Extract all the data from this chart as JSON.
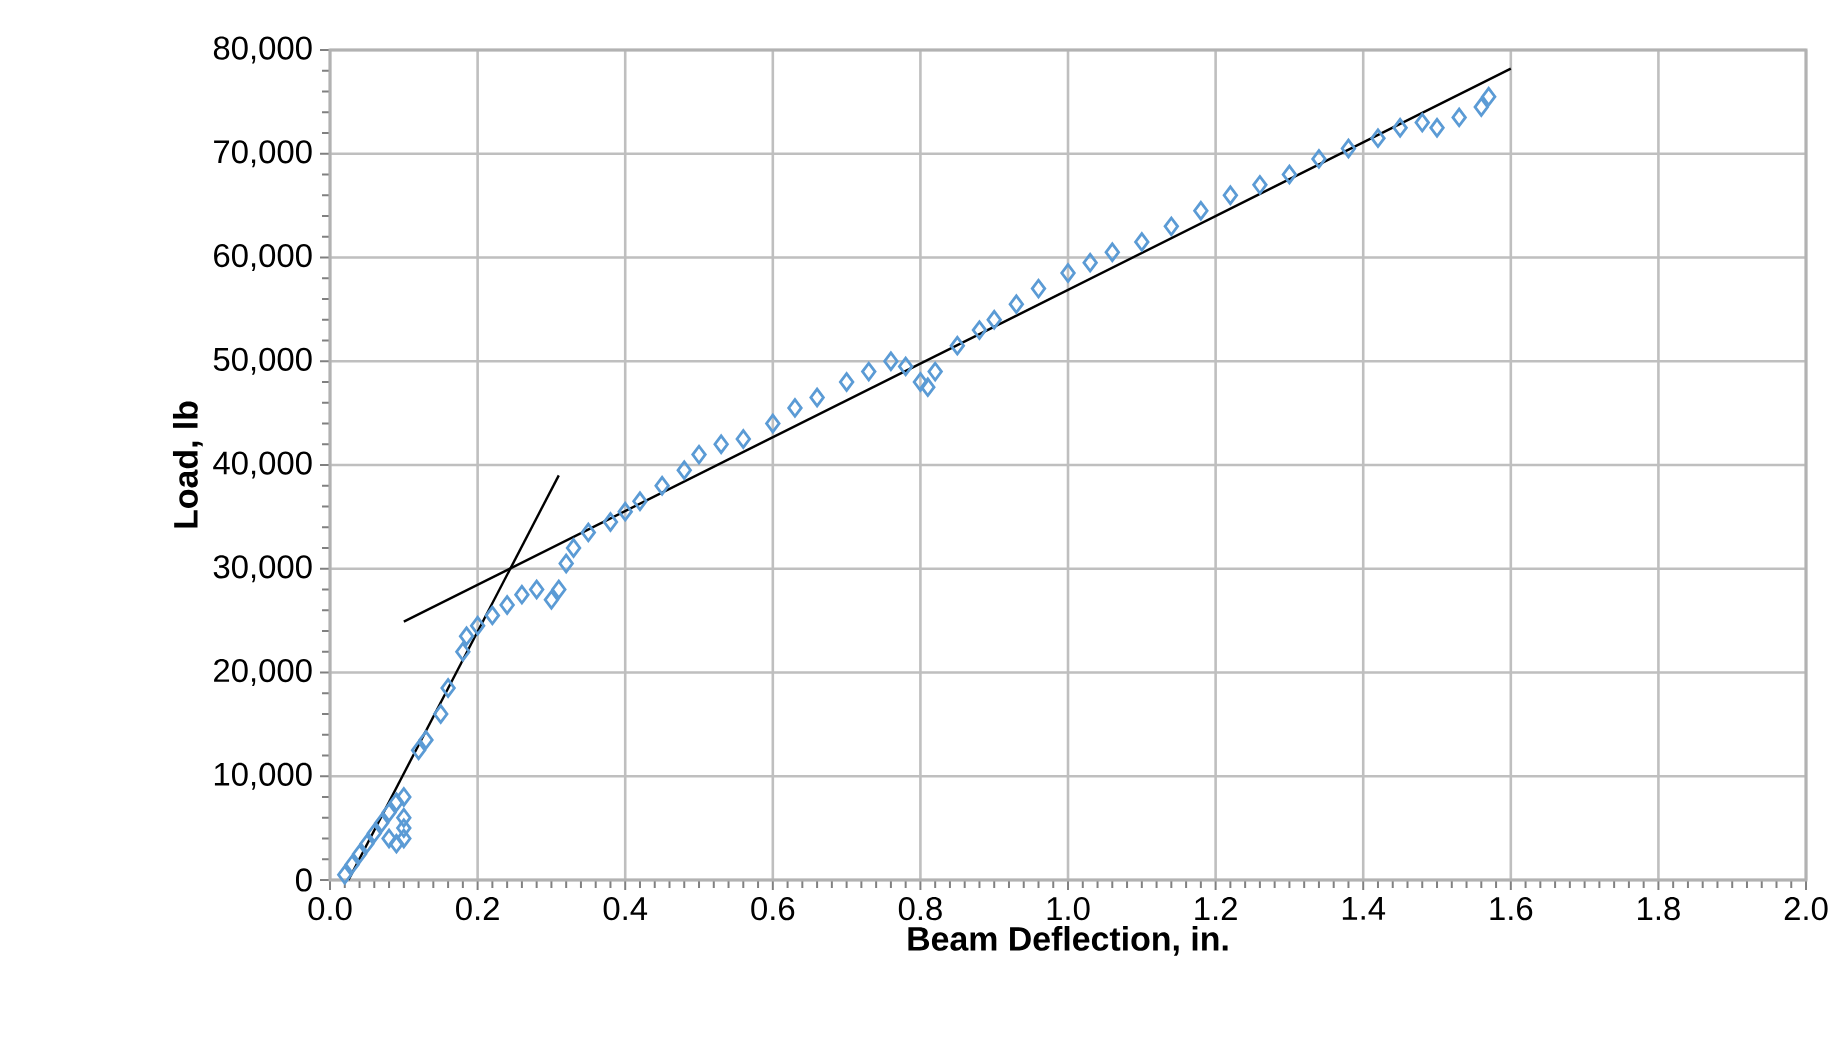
{
  "chart_data": {
    "type": "scatter",
    "xlabel": "Beam Deflection, in.",
    "ylabel": "Load, lb",
    "xlim": [
      0,
      2.0
    ],
    "xticks": [
      {
        "value": 0,
        "label": "0.0"
      },
      0.2,
      0.4,
      0.6,
      0.8,
      {
        "value": 1,
        "label": "1.0"
      },
      1.2,
      1.4,
      1.6,
      1.8,
      {
        "value": 2,
        "label": "2.0"
      }
    ],
    "ylim": [
      0,
      80000
    ],
    "yticks": [
      0,
      {
        "value": 10000,
        "label": "10,000"
      },
      {
        "value": 20000,
        "label": "20,000"
      },
      {
        "value": 30000,
        "label": "30,000"
      },
      {
        "value": 40000,
        "label": "40,000"
      },
      {
        "value": 50000,
        "label": "50,000"
      },
      {
        "value": 60000,
        "label": "60,000"
      },
      {
        "value": 70000,
        "label": "70,000"
      },
      {
        "value": 80000,
        "label": "80,000"
      }
    ],
    "grid": true,
    "marker": "diamond",
    "series": [
      {
        "color": "#5b9bd5",
        "x": [
          0.02,
          0.03,
          0.04,
          0.05,
          0.06,
          0.07,
          0.08,
          0.09,
          0.1,
          0.1,
          0.1,
          0.09,
          0.08,
          0.1,
          0.12,
          0.13,
          0.15,
          0.16,
          0.18,
          0.185,
          0.2,
          0.22,
          0.24,
          0.26,
          0.28,
          0.3,
          0.31,
          0.32,
          0.33,
          0.35,
          0.38,
          0.4,
          0.42,
          0.45,
          0.48,
          0.5,
          0.53,
          0.56,
          0.6,
          0.63,
          0.66,
          0.7,
          0.73,
          0.76,
          0.78,
          0.8,
          0.81,
          0.82,
          0.85,
          0.88,
          0.9,
          0.93,
          0.96,
          1.0,
          1.03,
          1.06,
          1.1,
          1.14,
          1.18,
          1.22,
          1.26,
          1.3,
          1.34,
          1.38,
          1.42,
          1.45,
          1.48,
          1.5,
          1.53,
          1.56,
          1.57
        ],
        "values": [
          500,
          1500,
          2500,
          3500,
          4500,
          5500,
          6500,
          7500,
          8000,
          6000,
          4000,
          3500,
          4000,
          5000,
          12500,
          13500,
          16000,
          18500,
          22000,
          23500,
          24500,
          25500,
          26500,
          27500,
          28000,
          27000,
          28000,
          30500,
          32000,
          33500,
          34500,
          35500,
          36500,
          38000,
          39500,
          41000,
          42000,
          42500,
          44000,
          45500,
          46500,
          48000,
          49000,
          50000,
          49500,
          48000,
          47500,
          49000,
          51500,
          53000,
          54000,
          55500,
          57000,
          58500,
          59500,
          60500,
          61500,
          63000,
          64500,
          66000,
          67000,
          68000,
          69500,
          70500,
          71500,
          72500,
          73000,
          72500,
          73500,
          74500,
          75500
        ]
      },
      {
        "type": "line",
        "color": "#000000",
        "marker": "none",
        "x": [
          0.025,
          0.31
        ],
        "values": [
          0,
          39000
        ]
      },
      {
        "type": "line",
        "color": "#000000",
        "marker": "none",
        "x": [
          0.1,
          1.6
        ],
        "values": [
          24900,
          78200
        ]
      }
    ]
  }
}
